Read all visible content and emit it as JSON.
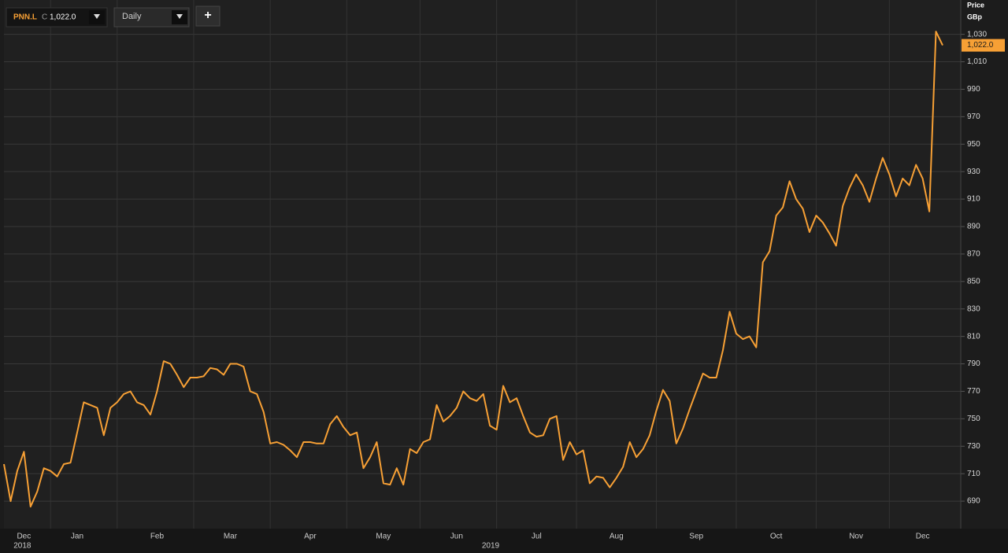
{
  "header": {
    "close_prefix": "C",
    "interval": "Daily",
    "add": "+"
  },
  "chart_data": {
    "type": "line",
    "y_axis_title": [
      "Price",
      "GBp"
    ],
    "x_years": [
      "2018",
      "2019"
    ],
    "categories": [
      null,
      null,
      null,
      "Dec",
      null,
      null,
      null,
      null,
      null,
      null,
      null,
      "Jan",
      null,
      null,
      null,
      null,
      null,
      null,
      null,
      null,
      null,
      null,
      null,
      "Feb",
      null,
      null,
      null,
      null,
      null,
      null,
      null,
      null,
      null,
      null,
      "Mar",
      null,
      null,
      null,
      null,
      null,
      null,
      null,
      null,
      null,
      null,
      null,
      "Apr",
      null,
      null,
      null,
      null,
      null,
      null,
      null,
      null,
      null,
      null,
      "May",
      null,
      null,
      null,
      null,
      null,
      null,
      null,
      null,
      null,
      null,
      "Jun",
      null,
      null,
      null,
      null,
      null,
      null,
      null,
      null,
      null,
      null,
      null,
      "Jul",
      null,
      null,
      null,
      null,
      null,
      null,
      null,
      null,
      null,
      null,
      null,
      "Aug",
      null,
      null,
      null,
      null,
      null,
      null,
      null,
      null,
      null,
      null,
      null,
      "Sep",
      null,
      null,
      null,
      null,
      null,
      null,
      null,
      null,
      null,
      null,
      null,
      "Oct",
      null,
      null,
      null,
      null,
      null,
      null,
      null,
      null,
      null,
      null,
      null,
      "Nov",
      null,
      null,
      null,
      null,
      null,
      null,
      null,
      null,
      null,
      "Dec",
      null,
      null,
      null
    ],
    "series": [
      {
        "name": "PNN.L",
        "color": "#f7a035",
        "values": [
          717,
          690,
          712,
          726,
          686,
          697,
          714,
          712,
          708,
          717,
          718,
          740,
          762,
          760,
          758,
          738,
          758,
          762,
          768,
          770,
          762,
          760,
          753,
          770,
          792,
          790,
          782,
          773,
          780,
          780,
          781,
          787,
          786,
          782,
          790,
          790,
          788,
          770,
          768,
          755,
          732,
          733,
          731,
          727,
          722,
          733,
          733,
          732,
          732,
          746,
          752,
          744,
          738,
          740,
          714,
          722,
          733,
          703,
          702,
          714,
          702,
          728,
          725,
          733,
          735,
          760,
          748,
          752,
          758,
          770,
          765,
          763,
          768,
          745,
          742,
          774,
          762,
          765,
          752,
          740,
          737,
          738,
          750,
          752,
          720,
          733,
          724,
          727,
          703,
          708,
          707,
          700,
          707,
          715,
          733,
          722,
          728,
          738,
          756,
          771,
          763,
          732,
          743,
          757,
          770,
          783,
          780,
          780,
          800,
          828,
          812,
          808,
          810,
          802,
          864,
          872,
          898,
          904,
          923,
          910,
          903,
          886,
          898,
          893,
          885,
          876,
          905,
          918,
          928,
          920,
          908,
          925,
          940,
          928,
          912,
          925,
          920,
          935,
          925,
          901,
          1032,
          1022
        ]
      }
    ],
    "last_value": {
      "value": 1022,
      "label": "1,022.0"
    },
    "ylim": [
      670,
      1055
    ],
    "yticks": [
      690,
      710,
      730,
      750,
      770,
      790,
      810,
      830,
      850,
      870,
      890,
      910,
      930,
      950,
      970,
      990,
      {
        "value": 1010,
        "label": "1,010"
      },
      {
        "value": 1030,
        "label": "1,030"
      }
    ],
    "grid": true
  }
}
